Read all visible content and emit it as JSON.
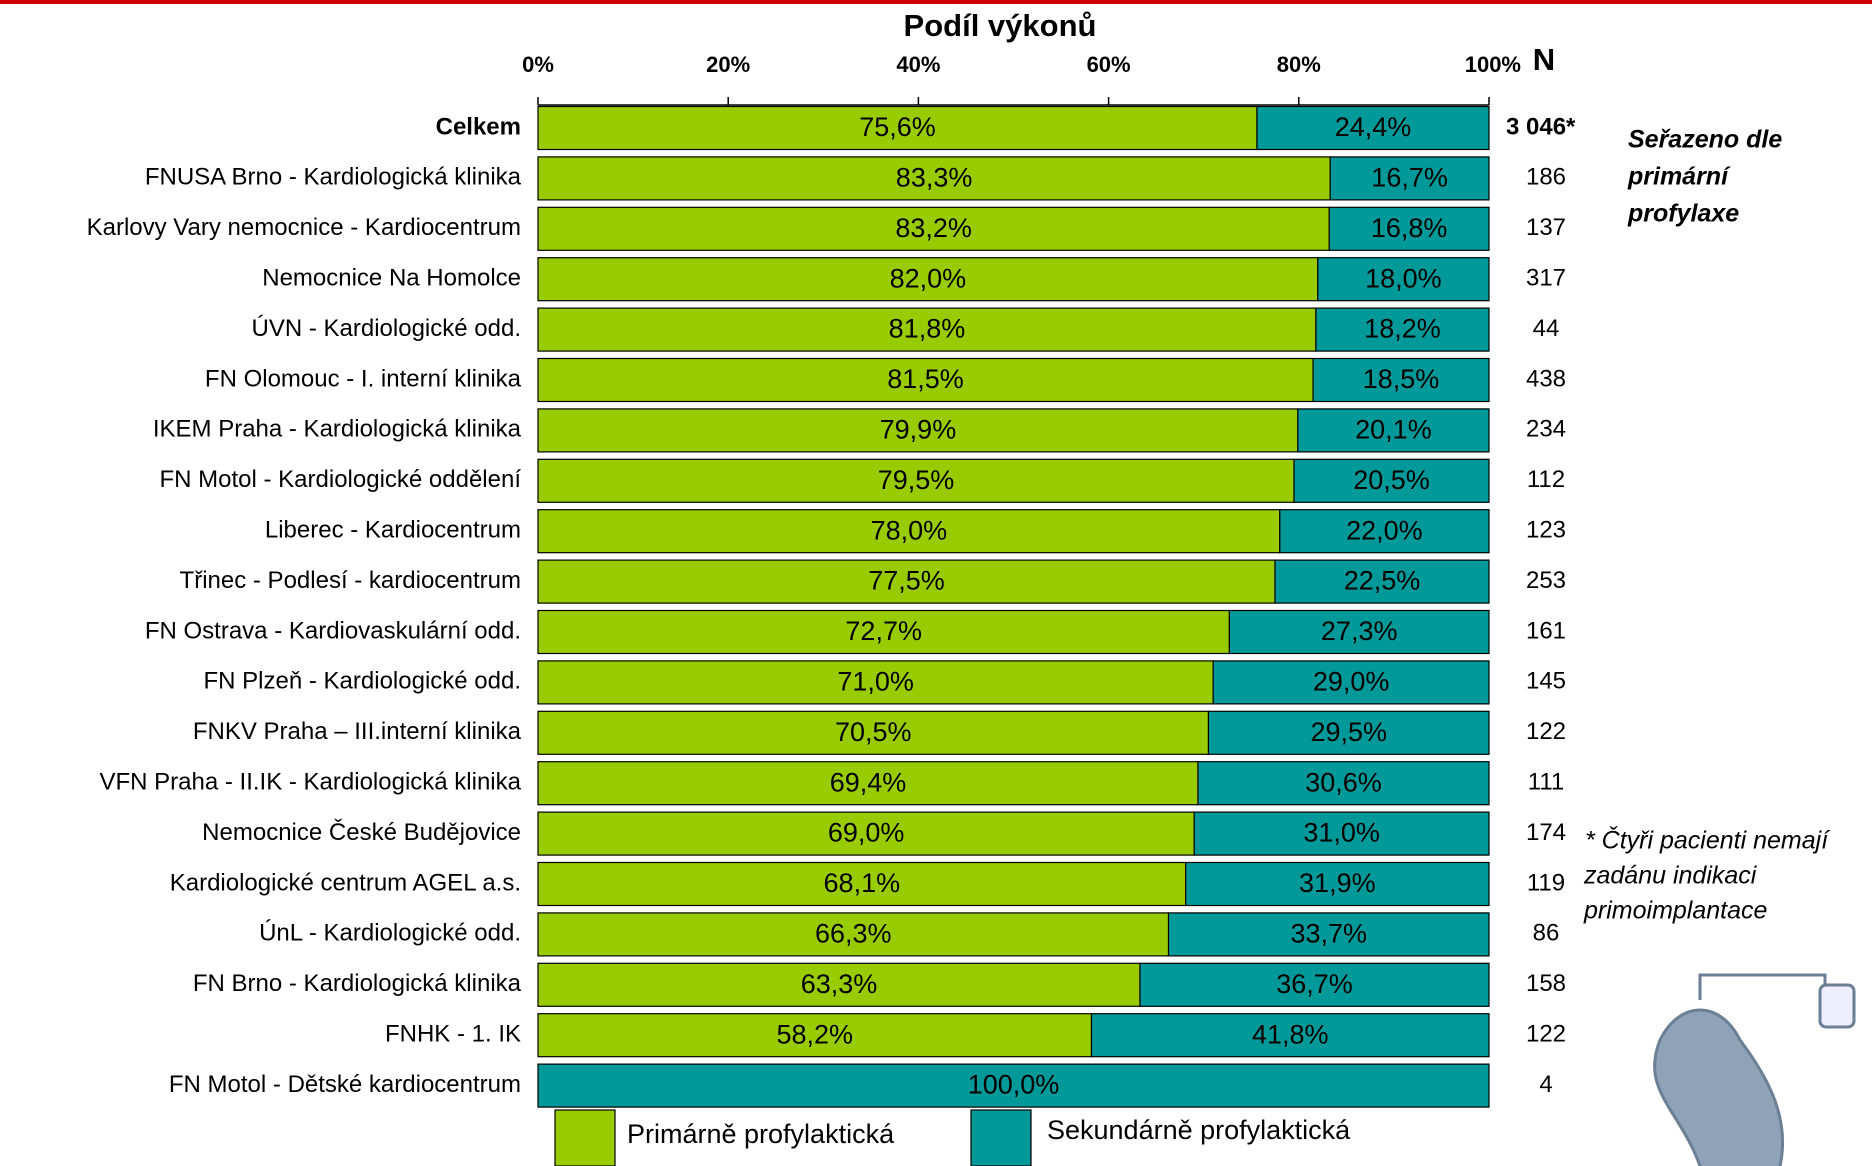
{
  "chart_data": {
    "type": "stacked-barh",
    "title": "Podíl výkonů",
    "categories": [
      "Celkem",
      "FNUSA Brno - Kardiologická klinika",
      "Karlovy Vary nemocnice - Kardiocentrum",
      "Nemocnice Na Homolce",
      "ÚVN - Kardiologické odd.",
      "FN Olomouc - I. interní klinika",
      "IKEM Praha - Kardiologická klinika",
      "FN Motol - Kardiologické oddělení",
      "Liberec - Kardiocentrum",
      "Třinec - Podlesí - kardiocentrum",
      "FN Ostrava - Kardiovaskulární odd.",
      "FN Plzeň - Kardiologické odd.",
      "FNKV Praha – III.interní klinika",
      "VFN Praha - II.IK - Kardiologická klinika",
      "Nemocnice České Budějovice",
      "Kardiologické centrum AGEL a.s.",
      "ÚnL - Kardiologické odd.",
      "FN Brno - Kardiologická klinika",
      "FNHK - 1. IK",
      "FN Motol - Dětské kardiocentrum"
    ],
    "series": [
      {
        "name": "Primárně profylaktická",
        "color": "#99cc00",
        "values": [
          75.6,
          83.3,
          83.2,
          82.0,
          81.8,
          81.5,
          79.9,
          79.5,
          78.0,
          77.5,
          72.7,
          71.0,
          70.5,
          69.4,
          69.0,
          68.1,
          66.3,
          63.3,
          58.2,
          0
        ],
        "value_labels": [
          "75,6%",
          "83,3%",
          "83,2%",
          "82,0%",
          "81,8%",
          "81,5%",
          "79,9%",
          "79,5%",
          "78,0%",
          "77,5%",
          "72,7%",
          "71,0%",
          "70,5%",
          "69,4%",
          "69,0%",
          "68,1%",
          "66,3%",
          "63,3%",
          "58,2%",
          null
        ]
      },
      {
        "name": "Sekundárně profylaktická",
        "color": "#009999",
        "values": [
          24.4,
          16.7,
          16.8,
          18.0,
          18.2,
          18.5,
          20.1,
          20.5,
          22.0,
          22.5,
          27.3,
          29.0,
          29.5,
          30.6,
          31.0,
          31.9,
          33.7,
          36.7,
          41.8,
          100.0
        ],
        "value_labels": [
          "24,4%",
          "16,7%",
          "16,8%",
          "18,0%",
          "18,2%",
          "18,5%",
          "20,1%",
          "20,5%",
          "22,0%",
          "22,5%",
          "27,3%",
          "29,0%",
          "29,5%",
          "30,6%",
          "31,0%",
          "31,9%",
          "33,7%",
          "36,7%",
          "41,8%",
          "100,0%"
        ]
      }
    ],
    "xlim": [
      0,
      100
    ],
    "xticks": [
      {
        "value": 0,
        "label": "0%"
      },
      {
        "value": 20,
        "label": "20%"
      },
      {
        "value": 40,
        "label": "40%"
      },
      {
        "value": 60,
        "label": "60%"
      },
      {
        "value": 80,
        "label": "80%"
      },
      {
        "value": 100,
        "label": "100%"
      }
    ],
    "n_header": "N",
    "n_values": [
      3046,
      186,
      137,
      317,
      44,
      438,
      234,
      112,
      123,
      253,
      161,
      145,
      122,
      111,
      174,
      119,
      86,
      158,
      122,
      4
    ],
    "n_value_labels": [
      "3 046*",
      "186",
      "137",
      "317",
      "44",
      "438",
      "234",
      "112",
      "123",
      "253",
      "161",
      "145",
      "122",
      "111",
      "174",
      "119",
      "86",
      "158",
      "122",
      "4"
    ],
    "sort_note": [
      "Seřazeno dle",
      "primární",
      "profylaxe"
    ],
    "footnote": [
      "* Čtyři pacienti nemají",
      "zadánu indikaci",
      "primoimplantace"
    ]
  }
}
